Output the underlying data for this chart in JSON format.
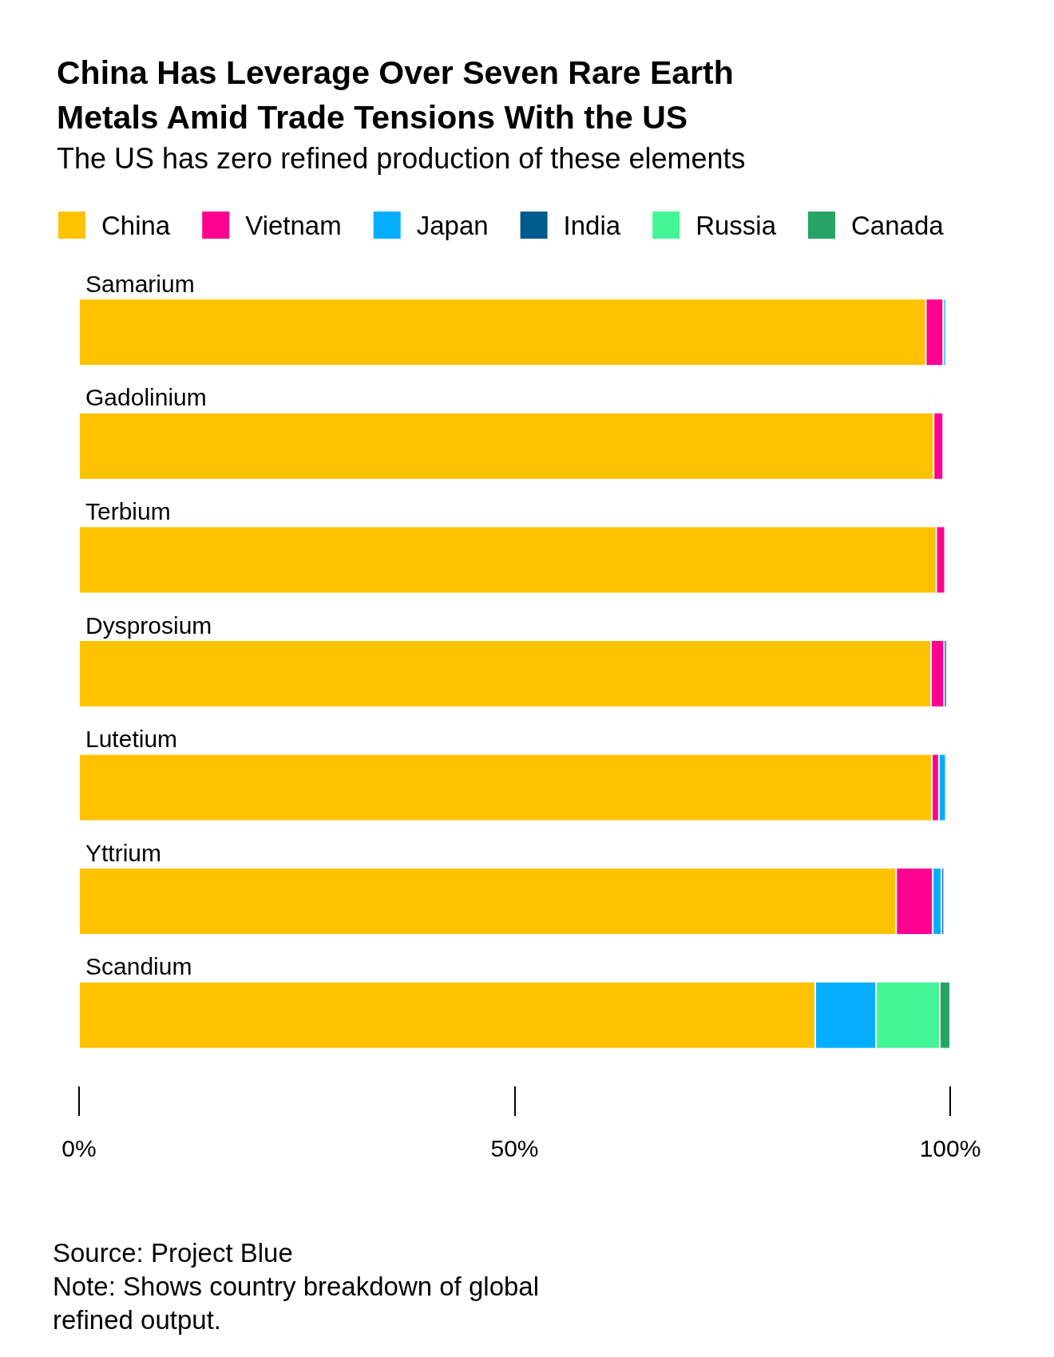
{
  "chart_data": {
    "type": "bar",
    "orientation": "horizontal",
    "stacked": true,
    "title": "China Has Leverage Over Seven Rare Earth\nMetals Amid Trade Tensions With the US",
    "subtitle": "The US has zero refined production of these elements",
    "categories": [
      "Samarium",
      "Gadolinium",
      "Terbium",
      "Dysprosium",
      "Lutetium",
      "Yttrium",
      "Scandium"
    ],
    "series": [
      {
        "name": "China",
        "color": "#ffc200",
        "values": [
          97.2,
          98.1,
          98.4,
          97.8,
          97.9,
          93.8,
          84.5
        ]
      },
      {
        "name": "Vietnam",
        "color": "#ff0090",
        "values": [
          2.0,
          1.1,
          1.0,
          1.5,
          0.8,
          4.2,
          null
        ]
      },
      {
        "name": "Japan",
        "color": "#05aeff",
        "values": [
          0.3,
          null,
          null,
          null,
          0.8,
          1.0,
          7.0
        ]
      },
      {
        "name": "India",
        "color": "#005b8c",
        "values": [
          null,
          null,
          null,
          0.3,
          null,
          0.3,
          null
        ]
      },
      {
        "name": "Russia",
        "color": "#43f695",
        "values": [
          null,
          null,
          null,
          null,
          null,
          null,
          7.3
        ]
      },
      {
        "name": "Canada",
        "color": "#27a465",
        "values": [
          null,
          null,
          null,
          null,
          null,
          null,
          1.2
        ]
      }
    ],
    "xlim": [
      0,
      100
    ],
    "xticks": [
      {
        "value": 0,
        "label": "0%"
      },
      {
        "value": 50,
        "label": "50%"
      },
      {
        "value": 100,
        "label": "100%"
      }
    ],
    "legend": "top left",
    "grid": false,
    "annotations": [
      "Source: Project Blue",
      "Note: Shows country breakdown of global\nrefined output."
    ]
  }
}
